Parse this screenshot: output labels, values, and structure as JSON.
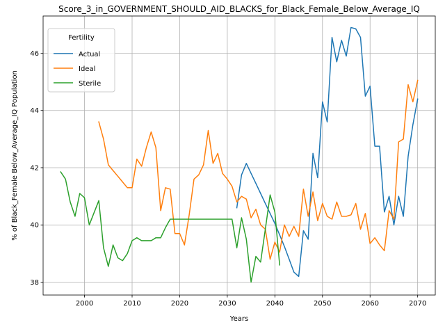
{
  "chart_data": {
    "type": "line",
    "title": "Score_3_in_GOVERNMENT_SHOULD_AID_BLACKS_for_Black_Female_Below_Average_IQ",
    "xlabel": "Years",
    "ylabel": "% of Black_Female Below_Average_IQ Population",
    "xlim": [
      1991.3,
      2073.7
    ],
    "ylim": [
      37.55,
      47.3
    ],
    "xticks": [
      2000,
      2010,
      2020,
      2030,
      2040,
      2050,
      2060,
      2070
    ],
    "yticks": [
      38,
      40,
      42,
      44,
      46
    ],
    "grid": true,
    "legend": {
      "title": "Fertility",
      "placement": "top-left"
    },
    "series": [
      {
        "name": "Actual",
        "color": "#1f77b4",
        "x": [
          2032,
          2033,
          2034,
          2035,
          2036,
          2037,
          2038,
          2039,
          2040,
          2041,
          2042,
          2043,
          2044,
          2045,
          2046,
          2047,
          2048,
          2049,
          2050,
          2051,
          2052,
          2053,
          2054,
          2055,
          2056,
          2057,
          2058,
          2059,
          2060,
          2061,
          2062,
          2063,
          2064,
          2065,
          2066,
          2067,
          2068,
          2069,
          2070
        ],
        "y": [
          40.6,
          41.75,
          42.15,
          41.8,
          41.45,
          41.1,
          40.75,
          40.4,
          40.05,
          39.65,
          39.25,
          38.8,
          38.35,
          38.2,
          39.8,
          39.5,
          42.5,
          41.65,
          44.3,
          43.6,
          46.55,
          45.7,
          46.45,
          45.9,
          46.9,
          46.85,
          46.55,
          44.5,
          44.85,
          42.75,
          42.75,
          40.45,
          41.0,
          40.0,
          41.0,
          40.3,
          42.4,
          43.5,
          44.4
        ]
      },
      {
        "name": "Ideal",
        "color": "#ff7f0e",
        "x": [
          2003,
          2004,
          2005,
          2006,
          2007,
          2008,
          2009,
          2010,
          2011,
          2012,
          2013,
          2014,
          2015,
          2016,
          2017,
          2018,
          2019,
          2020,
          2021,
          2022,
          2023,
          2024,
          2025,
          2026,
          2027,
          2028,
          2029,
          2030,
          2031,
          2032,
          2033,
          2034,
          2035,
          2036,
          2037,
          2038,
          2039,
          2040,
          2041,
          2042,
          2043,
          2044,
          2045,
          2046,
          2047,
          2048,
          2049,
          2050,
          2051,
          2052,
          2053,
          2054,
          2055,
          2056,
          2057,
          2058,
          2059,
          2060,
          2061,
          2062,
          2063,
          2064,
          2065,
          2066,
          2067,
          2068,
          2069,
          2070
        ],
        "y": [
          43.6,
          43.0,
          42.1,
          41.9,
          41.7,
          41.5,
          41.3,
          41.3,
          42.3,
          42.05,
          42.7,
          43.25,
          42.7,
          40.5,
          41.3,
          41.25,
          39.7,
          39.7,
          39.3,
          40.35,
          41.6,
          41.75,
          42.1,
          43.3,
          42.15,
          42.5,
          41.8,
          41.6,
          41.35,
          40.8,
          41.0,
          40.9,
          40.25,
          40.55,
          40.0,
          39.85,
          38.8,
          39.4,
          39.05,
          40.0,
          39.6,
          39.95,
          39.6,
          41.25,
          40.3,
          41.15,
          40.15,
          40.75,
          40.3,
          40.2,
          40.8,
          40.3,
          40.3,
          40.35,
          40.75,
          39.85,
          40.4,
          39.35,
          39.55,
          39.3,
          39.1,
          40.5,
          40.2,
          42.9,
          43.0,
          44.9,
          44.3,
          45.05
        ]
      },
      {
        "name": "Sterile",
        "color": "#2ca02c",
        "x": [
          1995,
          1996,
          1997,
          1998,
          1999,
          2000,
          2001,
          2003,
          2004,
          2005,
          2006,
          2007,
          2008,
          2009,
          2010,
          2011,
          2012,
          2013,
          2014,
          2015,
          2016,
          2017,
          2018,
          2019,
          2020,
          2021,
          2022,
          2023,
          2024,
          2025,
          2026,
          2027,
          2028,
          2029,
          2030,
          2031,
          2032,
          2033,
          2034,
          2035,
          2036,
          2037,
          2038,
          2039,
          2040,
          2041
        ],
        "y": [
          41.85,
          41.6,
          40.8,
          40.3,
          41.1,
          40.95,
          40.0,
          40.85,
          39.2,
          38.55,
          39.3,
          38.85,
          38.75,
          39.0,
          39.45,
          39.55,
          39.45,
          39.45,
          39.45,
          39.55,
          39.55,
          39.9,
          40.2,
          40.2,
          40.2,
          40.2,
          40.2,
          40.2,
          40.2,
          40.2,
          40.2,
          40.2,
          40.2,
          40.2,
          40.2,
          40.2,
          39.2,
          40.25,
          39.5,
          38.0,
          38.9,
          38.7,
          39.85,
          41.05,
          40.45,
          38.6
        ]
      }
    ]
  }
}
